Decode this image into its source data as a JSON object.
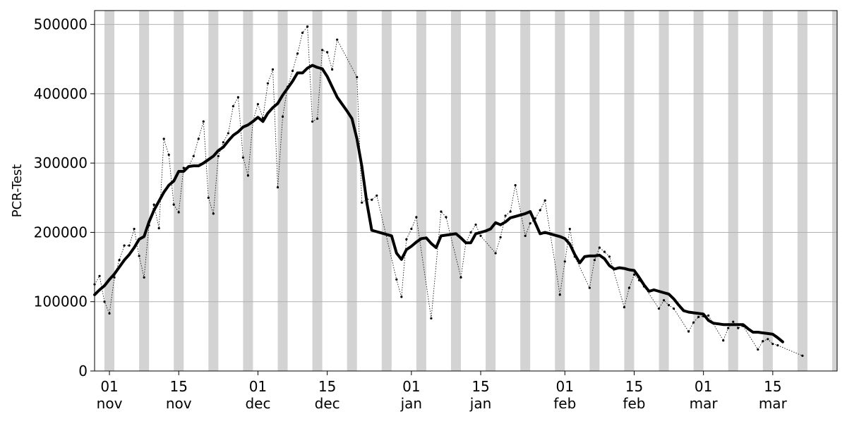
{
  "chart_data": {
    "type": "line",
    "title": "",
    "xlabel": "",
    "ylabel": "PCR-Test",
    "x_range": [
      "2020-10-29",
      "2021-03-28"
    ],
    "ylim": [
      0,
      520000
    ],
    "y_ticks": [
      0,
      100000,
      200000,
      300000,
      400000,
      500000
    ],
    "y_tick_labels": [
      "0",
      "100000",
      "200000",
      "300000",
      "400000",
      "500000"
    ],
    "x_ticks": [
      {
        "date": "2020-11-01",
        "day": "01",
        "month": "nov"
      },
      {
        "date": "2020-11-15",
        "day": "15",
        "month": "nov"
      },
      {
        "date": "2020-12-01",
        "day": "01",
        "month": "dec"
      },
      {
        "date": "2020-12-15",
        "day": "15",
        "month": "dec"
      },
      {
        "date": "2021-01-01",
        "day": "01",
        "month": "jan"
      },
      {
        "date": "2021-01-15",
        "day": "15",
        "month": "jan"
      },
      {
        "date": "2021-02-01",
        "day": "01",
        "month": "feb"
      },
      {
        "date": "2021-02-15",
        "day": "15",
        "month": "feb"
      },
      {
        "date": "2021-03-01",
        "day": "01",
        "month": "mar"
      },
      {
        "date": "2021-03-15",
        "day": "15",
        "month": "mar"
      }
    ],
    "grid": {
      "horizontal": true,
      "vertical": false
    },
    "weekend_bands": [
      "2020-10-31",
      "2020-11-07",
      "2020-11-14",
      "2020-11-21",
      "2020-11-28",
      "2020-12-05",
      "2020-12-12",
      "2020-12-19",
      "2020-12-26",
      "2021-01-02",
      "2021-01-09",
      "2021-01-16",
      "2021-01-23",
      "2021-01-30",
      "2021-02-06",
      "2021-02-13",
      "2021-02-20",
      "2021-02-27",
      "2021-03-06",
      "2021-03-13",
      "2021-03-20",
      "2021-03-27"
    ],
    "series": [
      {
        "style": "dotted-with-markers",
        "color": "#000000",
        "start_date": "2020-10-29",
        "values": [
          125000,
          137000,
          100000,
          83000,
          135000,
          160000,
          181000,
          181000,
          205000,
          166000,
          135000,
          210000,
          240000,
          206000,
          335000,
          312000,
          240000,
          229000,
          293000,
          295000,
          310000,
          335000,
          360000,
          250000,
          227000,
          310000,
          330000,
          343000,
          382000,
          395000,
          308000,
          282000,
          360000,
          385000,
          365000,
          415000,
          435000,
          265000,
          367000,
          410000,
          433000,
          458000,
          488000,
          497000,
          360000,
          364000,
          463000,
          460000,
          435000,
          478000,
          null,
          null,
          null,
          424000,
          243000,
          248000,
          247000,
          253000,
          null,
          null,
          null,
          132000,
          107000,
          190000,
          205000,
          222000,
          null,
          null,
          76000,
          null,
          230000,
          222000,
          null,
          null,
          135000,
          185000,
          200000,
          211000,
          195000,
          null,
          null,
          170000,
          193000,
          224000,
          230000,
          268000,
          null,
          195000,
          213000,
          220000,
          232000,
          246000,
          null,
          null,
          110000,
          158000,
          205000,
          165000,
          null,
          null,
          120000,
          160000,
          178000,
          172000,
          165000,
          null,
          null,
          92000,
          120000,
          139000,
          131000,
          122000,
          null,
          null,
          90000,
          102000,
          95000,
          90000,
          null,
          null,
          57000,
          70000,
          78000,
          79000,
          80000,
          null,
          null,
          44000,
          62000,
          71000,
          62000,
          65000,
          null,
          null,
          31000,
          43000,
          46000,
          39000,
          37000,
          null,
          null,
          null,
          null,
          22000
        ]
      },
      {
        "style": "solid-thick",
        "color": "#000000",
        "start_date": "2020-10-29",
        "values": [
          110000,
          117000,
          123000,
          132000,
          140000,
          150000,
          160000,
          168000,
          178000,
          190000,
          194000,
          215000,
          232000,
          245000,
          258000,
          268000,
          274000,
          288000,
          288000,
          295000,
          296000,
          296000,
          300000,
          305000,
          310000,
          318000,
          323000,
          332000,
          340000,
          345000,
          352000,
          355000,
          360000,
          366000,
          360000,
          372000,
          380000,
          386000,
          398000,
          408000,
          418000,
          430000,
          430000,
          437000,
          441000,
          438000,
          436000,
          425000,
          410000,
          395000,
          385000,
          375000,
          364000,
          335000,
          295000,
          243000,
          203000,
          201000,
          199000,
          197000,
          195000,
          170000,
          161000,
          175000,
          180000,
          186000,
          191000,
          192000,
          184000,
          178000,
          195000,
          196000,
          197000,
          198000,
          192000,
          185000,
          185000,
          198000,
          200000,
          202000,
          205000,
          214000,
          211000,
          215000,
          221000,
          223000,
          225000,
          227000,
          230000,
          214000,
          198000,
          200000,
          198000,
          196000,
          194000,
          191000,
          183000,
          168000,
          156000,
          165000,
          166000,
          166000,
          167000,
          162000,
          152000,
          147000,
          149000,
          148000,
          146000,
          145000,
          135000,
          124000,
          115000,
          117000,
          115000,
          113000,
          111000,
          104000,
          95000,
          87000,
          85000,
          84000,
          83000,
          82000,
          73000,
          69000,
          68000,
          67000,
          67000,
          67000,
          67000,
          67000,
          61000,
          56000,
          56000,
          55000,
          54000,
          53000,
          48000,
          42000
        ]
      }
    ]
  }
}
